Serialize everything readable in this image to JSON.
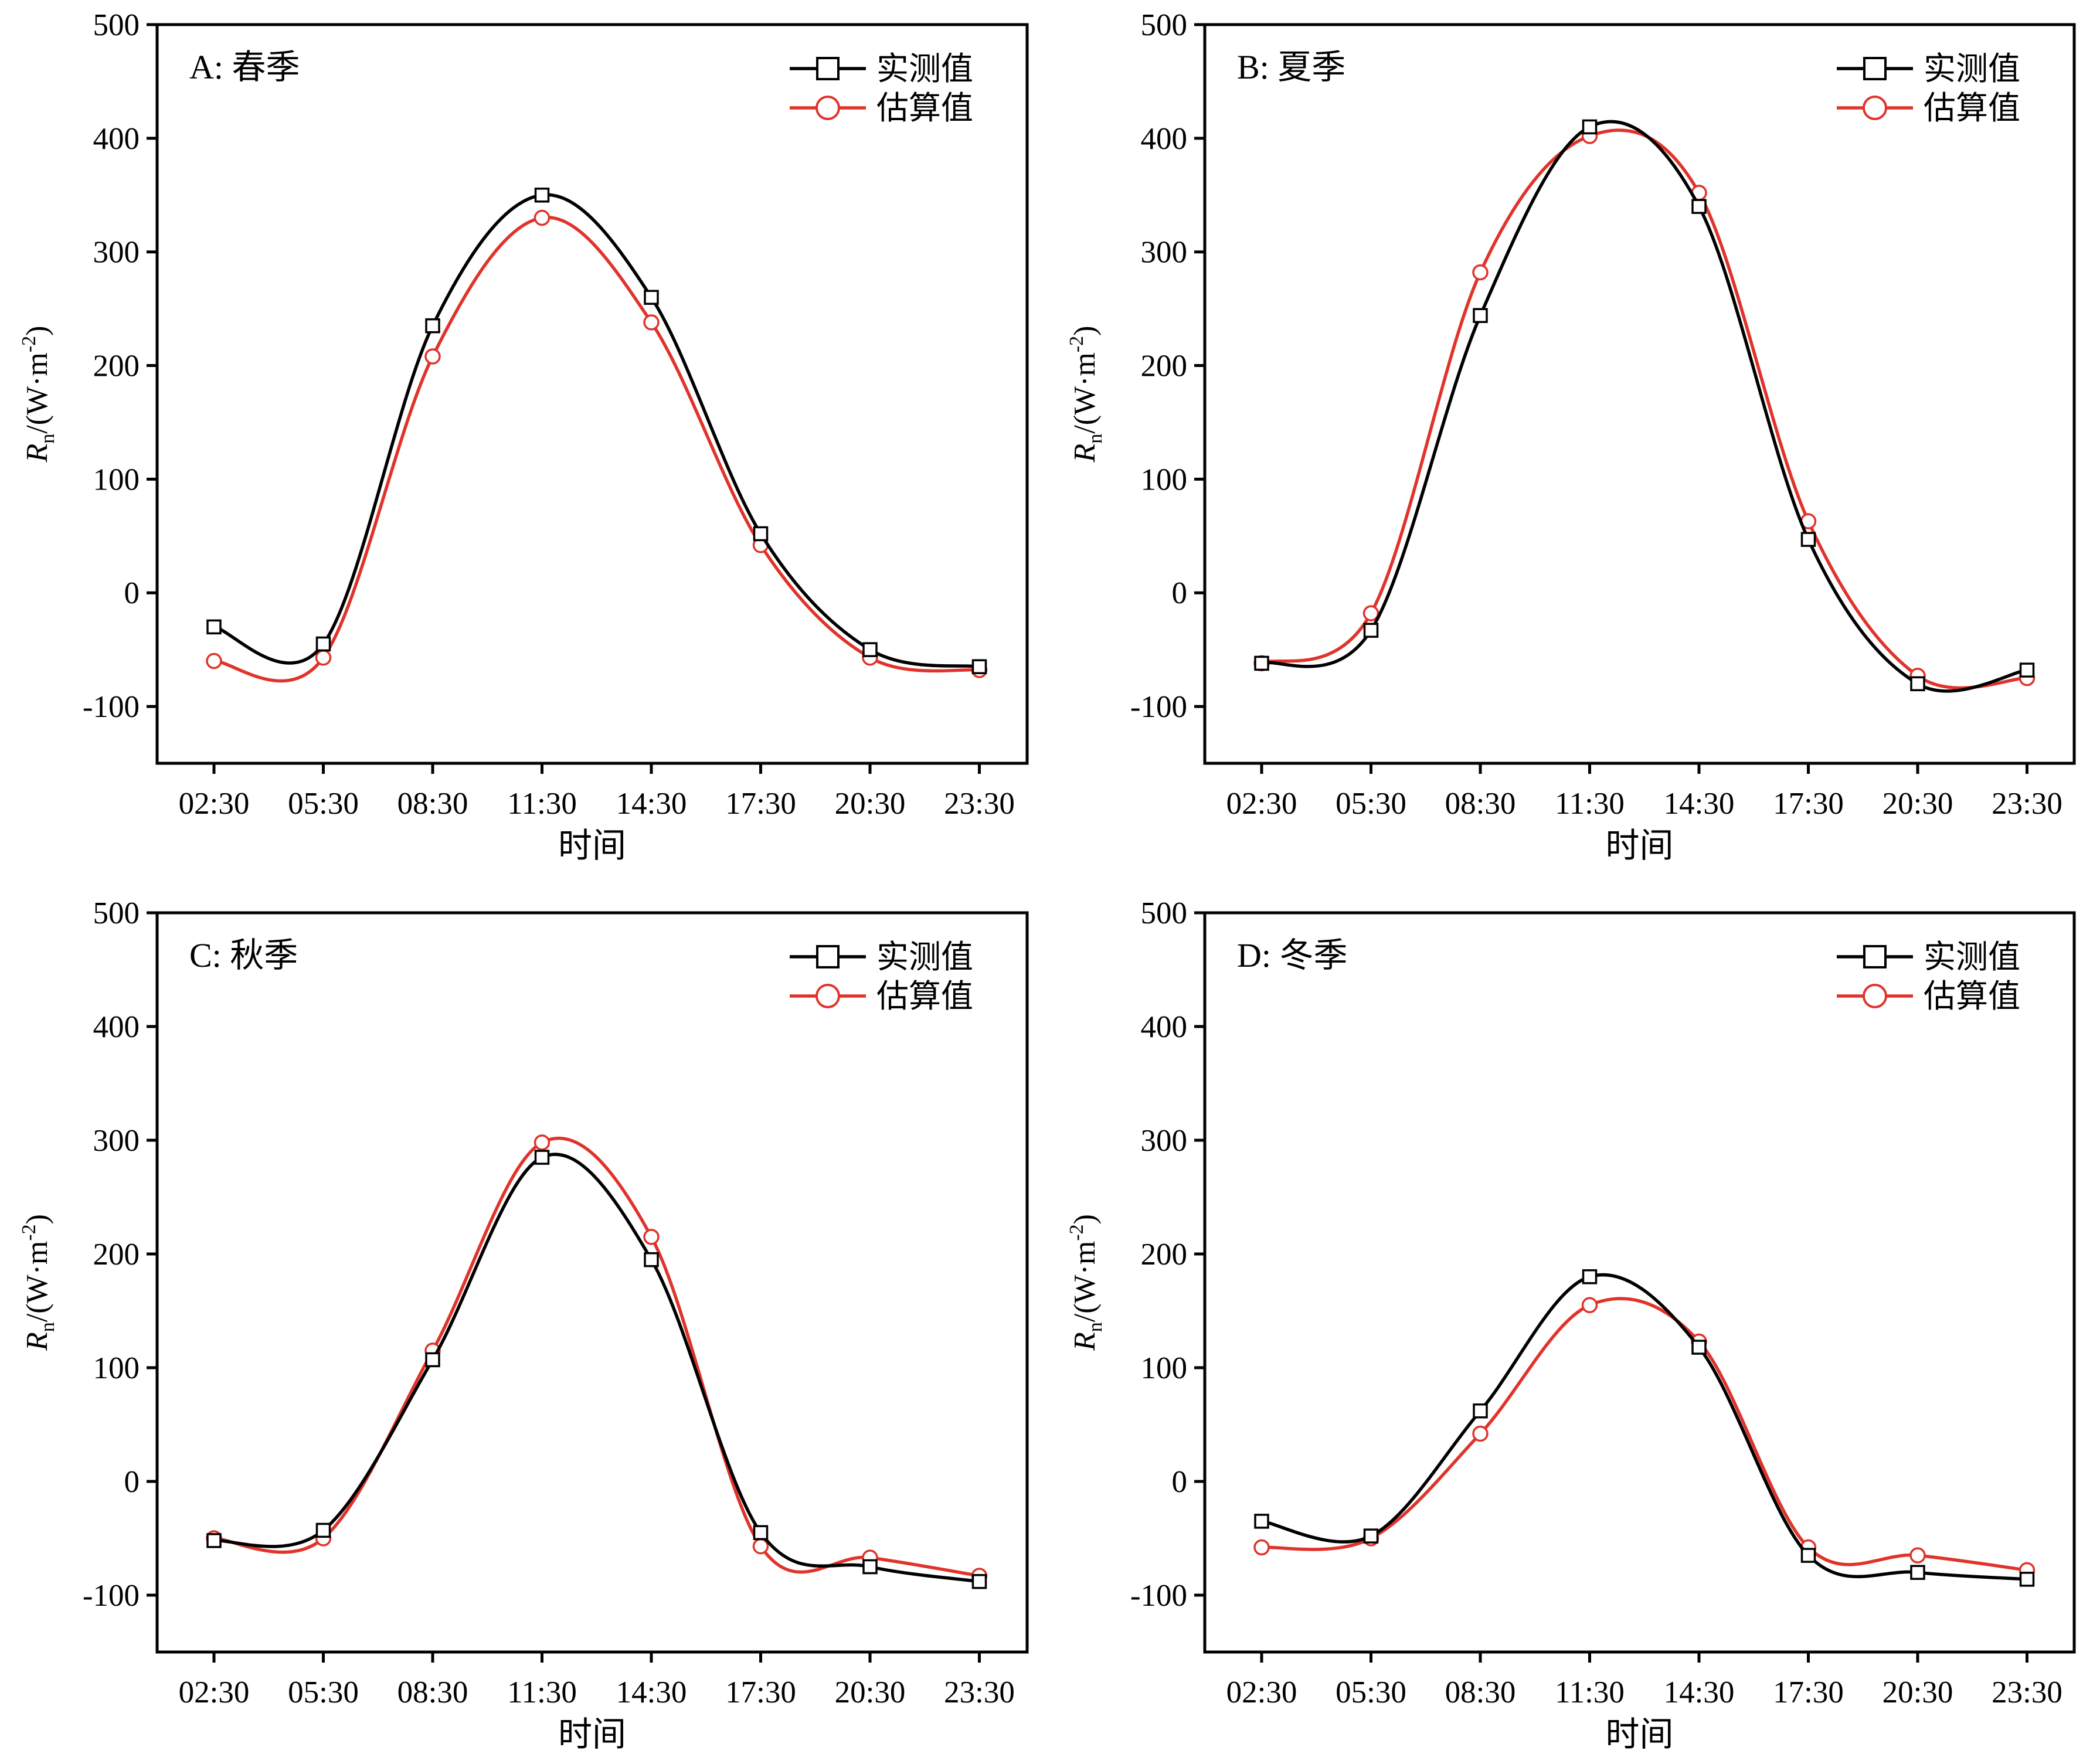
{
  "figure": {
    "ylabel_var": "R",
    "ylabel_sub": "n",
    "ylabel_unit_open": "/(W·m",
    "ylabel_unit_sup": "-2",
    "ylabel_unit_close": ")",
    "colors": {
      "measured": "#000000",
      "estimated": "#e0332b"
    }
  },
  "chart_data": [
    {
      "type": "line",
      "panel": "A: 春季",
      "xlabel": "时间",
      "ylabel": "Rn/(W·m-2)",
      "categories": [
        "02:30",
        "05:30",
        "08:30",
        "11:30",
        "14:30",
        "17:30",
        "20:30",
        "23:30"
      ],
      "ylim": [
        -150,
        500
      ],
      "yticks": [
        -100,
        0,
        100,
        200,
        300,
        400,
        500
      ],
      "legend_position": "top-right",
      "series": [
        {
          "name": "实测值",
          "marker": "square",
          "color": "#000000",
          "values": [
            -30,
            -45,
            235,
            350,
            260,
            52,
            -50,
            -65
          ]
        },
        {
          "name": "估算值",
          "marker": "circle",
          "color": "#e0332b",
          "values": [
            -60,
            -57,
            208,
            330,
            238,
            42,
            -57,
            -68
          ]
        }
      ]
    },
    {
      "type": "line",
      "panel": "B: 夏季",
      "xlabel": "时间",
      "ylabel": "Rn/(W·m-2)",
      "categories": [
        "02:30",
        "05:30",
        "08:30",
        "11:30",
        "14:30",
        "17:30",
        "20:30",
        "23:30"
      ],
      "ylim": [
        -150,
        500
      ],
      "yticks": [
        -100,
        0,
        100,
        200,
        300,
        400,
        500
      ],
      "legend_position": "top-right",
      "series": [
        {
          "name": "实测值",
          "marker": "square",
          "color": "#000000",
          "values": [
            -62,
            -33,
            244,
            410,
            340,
            47,
            -80,
            -68
          ]
        },
        {
          "name": "估算值",
          "marker": "circle",
          "color": "#e0332b",
          "values": [
            -62,
            -18,
            282,
            402,
            352,
            63,
            -73,
            -75
          ]
        }
      ]
    },
    {
      "type": "line",
      "panel": "C: 秋季",
      "xlabel": "时间",
      "ylabel": "Rn/(W·m-2)",
      "categories": [
        "02:30",
        "05:30",
        "08:30",
        "11:30",
        "14:30",
        "17:30",
        "20:30",
        "23:30"
      ],
      "ylim": [
        -150,
        500
      ],
      "yticks": [
        -100,
        0,
        100,
        200,
        300,
        400,
        500
      ],
      "legend_position": "top-right",
      "series": [
        {
          "name": "实测值",
          "marker": "square",
          "color": "#000000",
          "values": [
            -52,
            -43,
            107,
            285,
            195,
            -45,
            -75,
            -88
          ]
        },
        {
          "name": "估算值",
          "marker": "circle",
          "color": "#e0332b",
          "values": [
            -50,
            -50,
            115,
            298,
            215,
            -57,
            -67,
            -83
          ]
        }
      ]
    },
    {
      "type": "line",
      "panel": "D: 冬季",
      "xlabel": "时间",
      "ylabel": "Rn/(W·m-2)",
      "categories": [
        "02:30",
        "05:30",
        "08:30",
        "11:30",
        "14:30",
        "17:30",
        "20:30",
        "23:30"
      ],
      "ylim": [
        -150,
        500
      ],
      "yticks": [
        -100,
        0,
        100,
        200,
        300,
        400,
        500
      ],
      "legend_position": "top-right",
      "series": [
        {
          "name": "实测值",
          "marker": "square",
          "color": "#000000",
          "values": [
            -35,
            -48,
            62,
            180,
            118,
            -65,
            -80,
            -86
          ]
        },
        {
          "name": "估算值",
          "marker": "circle",
          "color": "#e0332b",
          "values": [
            -58,
            -50,
            42,
            155,
            123,
            -58,
            -65,
            -78
          ]
        }
      ]
    }
  ]
}
